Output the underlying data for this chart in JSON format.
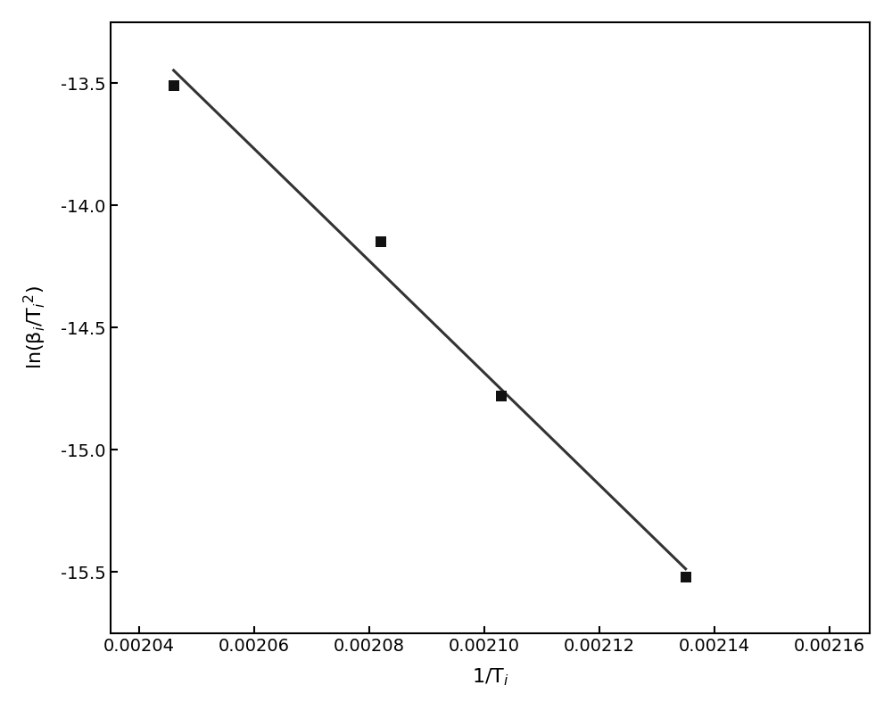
{
  "x_data": [
    0.002046,
    0.002082,
    0.002103,
    0.002135
  ],
  "y_data": [
    -13.51,
    -14.15,
    -14.78,
    -15.52
  ],
  "marker": "s",
  "marker_color": "#111111",
  "marker_size": 9,
  "line_color": "#333333",
  "line_width": 2.2,
  "xlabel": "1/T$_i$",
  "ylabel": "ln(β$_i$/T$_i$$^2$)",
  "xlim": [
    0.002035,
    0.002167
  ],
  "ylim": [
    -15.75,
    -13.25
  ],
  "xticks": [
    0.00204,
    0.00206,
    0.00208,
    0.0021,
    0.00212,
    0.00214,
    0.00216
  ],
  "yticks": [
    -15.5,
    -15.0,
    -14.5,
    -14.0,
    -13.5
  ],
  "background_color": "#ffffff",
  "axis_color": "#000000",
  "tick_label_fontsize": 14,
  "axis_label_fontsize": 16,
  "figsize": [
    10.0,
    7.96
  ]
}
